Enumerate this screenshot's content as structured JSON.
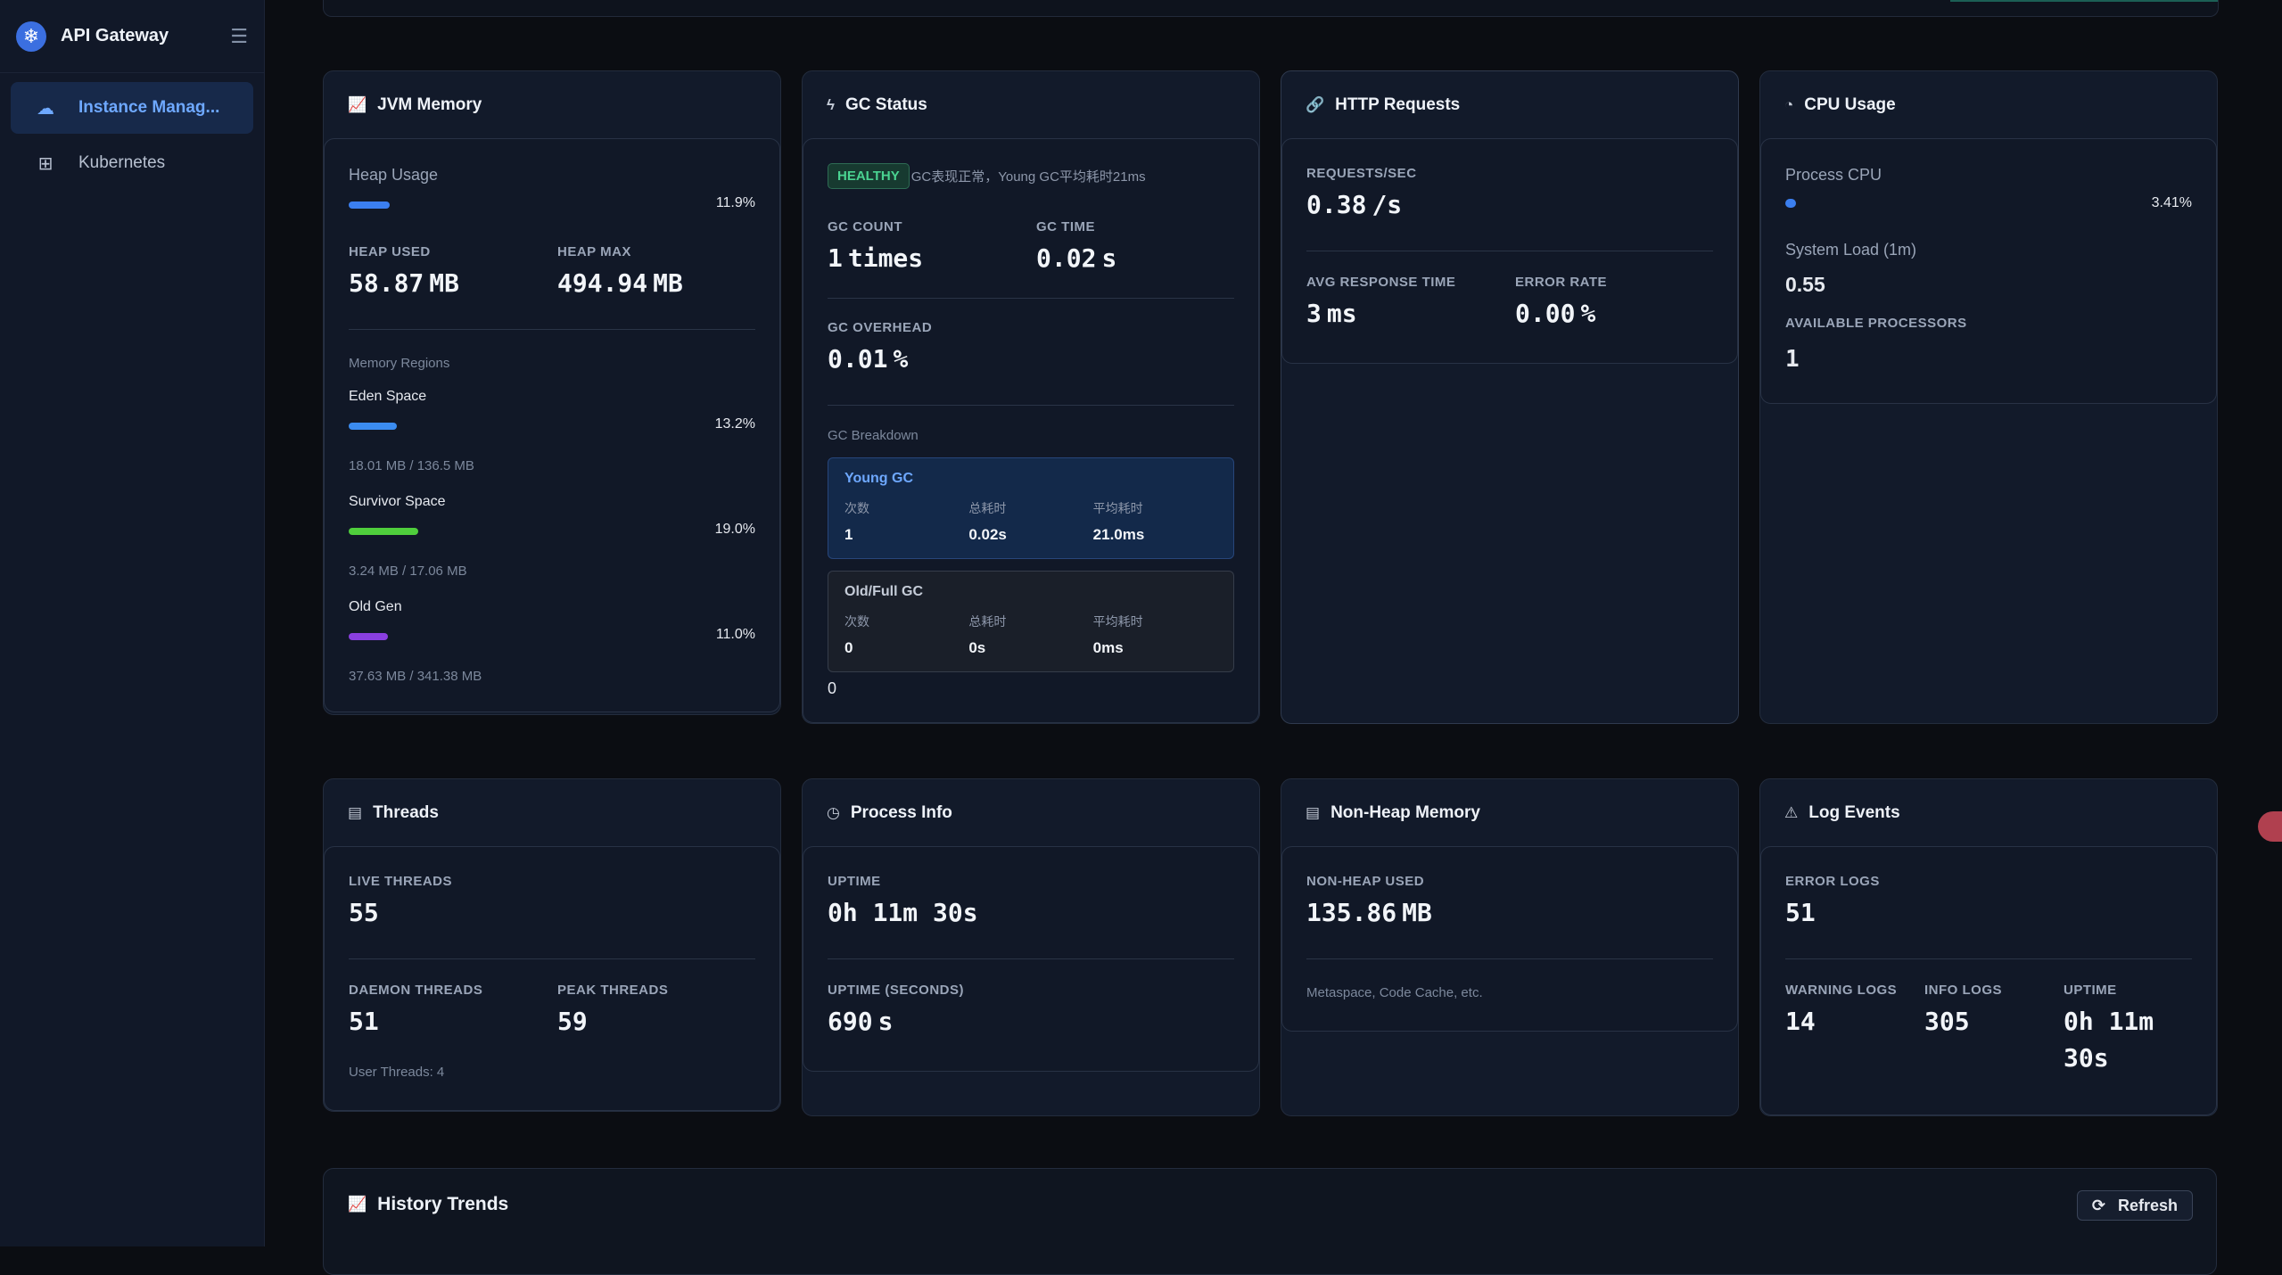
{
  "app": {
    "title": "API Gateway"
  },
  "sidebar": {
    "items": [
      {
        "label": "Instance Manag...",
        "active": true
      },
      {
        "label": "Kubernetes",
        "active": false
      }
    ]
  },
  "jvm": {
    "title": "JVM Memory",
    "heap_label": "Heap Usage",
    "heap_pct": "11.9%",
    "heap_fraction": 0.119,
    "heap_used_label": "HEAP USED",
    "heap_used": "58.87",
    "heap_used_unit": "MB",
    "heap_max_label": "HEAP MAX",
    "heap_max": "494.94",
    "heap_max_unit": "MB",
    "regions_label": "Memory Regions",
    "regions": [
      {
        "name": "Eden Space",
        "pct": "13.2%",
        "detail": "18.01 MB / 136.5 MB",
        "color": "#3b8cf0"
      },
      {
        "name": "Survivor Space",
        "pct": "19.0%",
        "detail": "3.24 MB / 17.06 MB",
        "color": "#4fce3c"
      },
      {
        "name": "Old Gen",
        "pct": "11.0%",
        "detail": "37.63 MB / 341.38 MB",
        "color": "#8a3fe0"
      }
    ]
  },
  "gc": {
    "title": "GC Status",
    "badge": "HEALTHY",
    "status_text": "GC表现正常，Young GC平均耗时21ms",
    "count_label": "GC COUNT",
    "count": "1",
    "count_unit": "times",
    "time_label": "GC TIME",
    "time": "0.02",
    "time_unit": "s",
    "overhead_label": "GC OVERHEAD",
    "overhead": "0.01",
    "overhead_unit": "%",
    "breakdown_label": "GC Breakdown",
    "young": {
      "title": "Young GC",
      "h1": "次数",
      "h2": "总耗时",
      "h3": "平均耗时",
      "v1": "1",
      "v2": "0.02s",
      "v3": "21.0ms"
    },
    "old": {
      "title": "Old/Full GC",
      "h1": "次数",
      "h2": "总耗时",
      "h3": "平均耗时",
      "v1": "0",
      "v2": "0s",
      "v3": "0ms"
    },
    "footer": "0"
  },
  "http": {
    "title": "HTTP Requests",
    "rps_label": "REQUESTS/SEC",
    "rps": "0.38",
    "rps_unit": "/s",
    "avg_label": "AVG RESPONSE TIME",
    "avg": "3",
    "avg_unit": "ms",
    "err_label": "ERROR RATE",
    "err": "0.00",
    "err_unit": "%"
  },
  "cpu": {
    "title": "CPU Usage",
    "proc_label": "Process CPU",
    "proc_pct": "3.41%",
    "load_label": "System Load (1m)",
    "load": "0.55",
    "procs_label": "AVAILABLE PROCESSORS",
    "procs": "1"
  },
  "threads": {
    "title": "Threads",
    "live_label": "LIVE THREADS",
    "live": "55",
    "daemon_label": "DAEMON THREADS",
    "daemon": "51",
    "peak_label": "PEAK THREADS",
    "peak": "59",
    "user": "User Threads: 4"
  },
  "process": {
    "title": "Process Info",
    "uptime_label": "UPTIME",
    "uptime": "0h 11m 30s",
    "secs_label": "UPTIME (SECONDS)",
    "secs": "690",
    "secs_unit": "s"
  },
  "nonheap": {
    "title": "Non-Heap Memory",
    "used_label": "NON-HEAP USED",
    "used": "135.86",
    "used_unit": "MB",
    "note": "Metaspace, Code Cache, etc."
  },
  "logs": {
    "title": "Log Events",
    "err_label": "ERROR LOGS",
    "err": "51",
    "warn_label": "WARNING LOGS",
    "warn": "14",
    "info_label": "INFO LOGS",
    "info": "305",
    "up_label": "UPTIME",
    "up_line1": "0h 11m",
    "up_line2": "30s"
  },
  "history": {
    "title": "History Trends",
    "refresh": "Refresh"
  }
}
